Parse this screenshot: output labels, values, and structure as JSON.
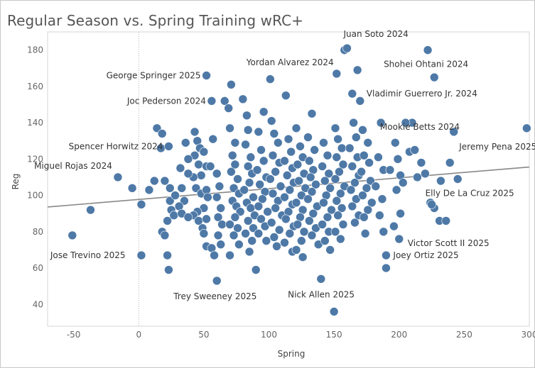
{
  "title": "Regular Season vs. Spring Training wRC+",
  "chart_data": {
    "type": "scatter",
    "title": "Regular Season vs. Spring Training wRC+",
    "xlabel": "Spring",
    "ylabel": "Reg",
    "xlim": [
      -70,
      300
    ],
    "ylim": [
      28,
      190
    ],
    "x_ticks": [
      -50,
      0,
      50,
      100,
      150,
      200,
      250,
      300
    ],
    "y_ticks": [
      40,
      60,
      80,
      100,
      120,
      140,
      160,
      180
    ],
    "grid": false,
    "zero_line": "x = 0 dotted",
    "colors": {
      "points": "#4e79a7",
      "trend": "#888888"
    },
    "trend_line": {
      "x": [
        -70,
        300
      ],
      "y": [
        93.6,
        115.6
      ]
    },
    "labeled_points": [
      {
        "name": "Juan Soto 2024",
        "x": 160,
        "y": 181
      },
      {
        "name": "Shohei Ohtani 2024",
        "x": 222,
        "y": 180
      },
      {
        "name": "Yordan Alvarez 2024",
        "x": 152,
        "y": 167
      },
      {
        "name": "George Springer 2025",
        "x": 52,
        "y": 166
      },
      {
        "name": "Vladimir Guerrero Jr. 2024",
        "x": 164,
        "y": 156
      },
      {
        "name": "Joc Pederson 2024",
        "x": 56,
        "y": 152
      },
      {
        "name": "Mookie Betts 2024",
        "x": 205,
        "y": 140
      },
      {
        "name": "Jeremy Pena 2025",
        "x": 298,
        "y": 137
      },
      {
        "name": "Spencer Horwitz 2024",
        "x": 23,
        "y": 127
      },
      {
        "name": "Miguel Rojas 2024",
        "x": -16,
        "y": 110
      },
      {
        "name": "Elly De La Cruz 2025",
        "x": 225,
        "y": 95
      },
      {
        "name": "Victor Scott II 2025",
        "x": 200,
        "y": 76
      },
      {
        "name": "Joey Ortiz 2025",
        "x": 190,
        "y": 67
      },
      {
        "name": "Jose Trevino 2025",
        "x": -51,
        "y": 78
      },
      {
        "name": "Trey Sweeney 2025",
        "x": 60,
        "y": 53
      },
      {
        "name": "Nick Allen 2025",
        "x": 150,
        "y": 36
      }
    ],
    "other_points": [
      [
        -37,
        92
      ],
      [
        -5,
        104
      ],
      [
        2,
        95
      ],
      [
        8,
        103
      ],
      [
        2,
        67
      ],
      [
        18,
        80
      ],
      [
        22,
        67
      ],
      [
        23,
        59
      ],
      [
        14,
        137
      ],
      [
        18,
        134
      ],
      [
        17,
        126
      ],
      [
        12,
        108
      ],
      [
        20,
        108
      ],
      [
        24,
        104
      ],
      [
        25,
        92
      ],
      [
        27,
        89
      ],
      [
        22,
        86
      ],
      [
        20,
        78
      ],
      [
        24,
        97
      ],
      [
        28,
        100
      ],
      [
        43,
        135
      ],
      [
        45,
        130
      ],
      [
        47,
        126
      ],
      [
        43,
        122
      ],
      [
        50,
        124
      ],
      [
        46,
        117
      ],
      [
        52,
        116
      ],
      [
        55,
        116
      ],
      [
        48,
        111
      ],
      [
        42,
        110
      ],
      [
        44,
        104
      ],
      [
        48,
        101
      ],
      [
        52,
        103
      ],
      [
        53,
        99
      ],
      [
        50,
        93
      ],
      [
        45,
        91
      ],
      [
        42,
        89
      ],
      [
        46,
        86
      ],
      [
        49,
        82
      ],
      [
        52,
        87
      ],
      [
        50,
        79
      ],
      [
        52,
        72
      ],
      [
        56,
        71
      ],
      [
        58,
        67
      ],
      [
        36,
        129
      ],
      [
        38,
        120
      ],
      [
        32,
        115
      ],
      [
        38,
        112
      ],
      [
        33,
        104
      ],
      [
        35,
        97
      ],
      [
        31,
        94
      ],
      [
        33,
        90
      ],
      [
        38,
        88
      ],
      [
        57,
        131
      ],
      [
        60,
        112
      ],
      [
        62,
        105
      ],
      [
        60,
        99
      ],
      [
        63,
        93
      ],
      [
        61,
        88
      ],
      [
        64,
        84
      ],
      [
        61,
        78
      ],
      [
        63,
        73
      ],
      [
        66,
        152
      ],
      [
        71,
        161
      ],
      [
        69,
        148
      ],
      [
        70,
        137
      ],
      [
        74,
        129
      ],
      [
        72,
        122
      ],
      [
        74,
        117
      ],
      [
        71,
        113
      ],
      [
        76,
        109
      ],
      [
        73,
        104
      ],
      [
        77,
        101
      ],
      [
        72,
        97
      ],
      [
        75,
        94
      ],
      [
        78,
        91
      ],
      [
        74,
        88
      ],
      [
        70,
        84
      ],
      [
        76,
        82
      ],
      [
        73,
        78
      ],
      [
        77,
        73
      ],
      [
        70,
        67
      ],
      [
        80,
        153
      ],
      [
        83,
        144
      ],
      [
        84,
        136
      ],
      [
        82,
        128
      ],
      [
        86,
        121
      ],
      [
        84,
        116
      ],
      [
        87,
        112
      ],
      [
        85,
        107
      ],
      [
        81,
        103
      ],
      [
        88,
        99
      ],
      [
        83,
        96
      ],
      [
        86,
        93
      ],
      [
        89,
        89
      ],
      [
        84,
        86
      ],
      [
        88,
        82
      ],
      [
        82,
        79
      ],
      [
        87,
        75
      ],
      [
        85,
        69
      ],
      [
        90,
        59
      ],
      [
        92,
        135
      ],
      [
        94,
        125
      ],
      [
        96,
        119
      ],
      [
        91,
        114
      ],
      [
        98,
        110
      ],
      [
        93,
        106
      ],
      [
        97,
        102
      ],
      [
        95,
        98
      ],
      [
        92,
        94
      ],
      [
        99,
        91
      ],
      [
        94,
        87
      ],
      [
        97,
        83
      ],
      [
        92,
        79
      ],
      [
        98,
        75
      ],
      [
        96,
        146
      ],
      [
        101,
        164
      ],
      [
        102,
        141
      ],
      [
        104,
        134
      ],
      [
        107,
        129
      ],
      [
        103,
        122
      ],
      [
        108,
        118
      ],
      [
        105,
        113
      ],
      [
        101,
        109
      ],
      [
        109,
        105
      ],
      [
        103,
        101
      ],
      [
        107,
        97
      ],
      [
        105,
        93
      ],
      [
        110,
        89
      ],
      [
        102,
        85
      ],
      [
        108,
        81
      ],
      [
        104,
        77
      ],
      [
        106,
        72
      ],
      [
        113,
        155
      ],
      [
        115,
        131
      ],
      [
        117,
        124
      ],
      [
        112,
        119
      ],
      [
        118,
        115
      ],
      [
        114,
        111
      ],
      [
        119,
        107
      ],
      [
        116,
        103
      ],
      [
        112,
        99
      ],
      [
        118,
        95
      ],
      [
        115,
        91
      ],
      [
        113,
        87
      ],
      [
        119,
        83
      ],
      [
        116,
        79
      ],
      [
        112,
        74
      ],
      [
        118,
        69
      ],
      [
        121,
        137
      ],
      [
        124,
        127
      ],
      [
        126,
        121
      ],
      [
        122,
        117
      ],
      [
        127,
        112
      ],
      [
        123,
        108
      ],
      [
        128,
        104
      ],
      [
        125,
        100
      ],
      [
        121,
        96
      ],
      [
        126,
        92
      ],
      [
        124,
        88
      ],
      [
        122,
        84
      ],
      [
        127,
        80
      ],
      [
        125,
        75
      ],
      [
        121,
        70
      ],
      [
        126,
        66
      ],
      [
        133,
        145
      ],
      [
        130,
        132
      ],
      [
        135,
        125
      ],
      [
        131,
        119
      ],
      [
        134,
        114
      ],
      [
        132,
        110
      ],
      [
        136,
        106
      ],
      [
        133,
        102
      ],
      [
        130,
        98
      ],
      [
        137,
        94
      ],
      [
        134,
        90
      ],
      [
        131,
        86
      ],
      [
        136,
        82
      ],
      [
        133,
        78
      ],
      [
        138,
        73
      ],
      [
        140,
        54
      ],
      [
        142,
        129
      ],
      [
        145,
        122
      ],
      [
        141,
        116
      ],
      [
        146,
        112
      ],
      [
        143,
        108
      ],
      [
        147,
        104
      ],
      [
        144,
        100
      ],
      [
        142,
        96
      ],
      [
        148,
        92
      ],
      [
        145,
        88
      ],
      [
        141,
        84
      ],
      [
        146,
        80
      ],
      [
        143,
        75
      ],
      [
        147,
        70
      ],
      [
        151,
        137
      ],
      [
        153,
        131
      ],
      [
        156,
        126
      ],
      [
        152,
        121
      ],
      [
        157,
        117
      ],
      [
        154,
        113
      ],
      [
        151,
        109
      ],
      [
        158,
        105
      ],
      [
        155,
        101
      ],
      [
        152,
        97
      ],
      [
        156,
        93
      ],
      [
        153,
        89
      ],
      [
        157,
        84
      ],
      [
        151,
        80
      ],
      [
        155,
        76
      ],
      [
        158,
        180
      ],
      [
        168,
        169
      ],
      [
        170,
        152
      ],
      [
        165,
        140
      ],
      [
        167,
        132
      ],
      [
        162,
        126
      ],
      [
        168,
        121
      ],
      [
        164,
        116
      ],
      [
        169,
        111
      ],
      [
        166,
        107
      ],
      [
        163,
        103
      ],
      [
        167,
        98
      ],
      [
        164,
        94
      ],
      [
        169,
        89
      ],
      [
        166,
        85
      ],
      [
        174,
        79
      ],
      [
        172,
        136
      ],
      [
        176,
        129
      ],
      [
        173,
        122
      ],
      [
        177,
        118
      ],
      [
        171,
        113
      ],
      [
        178,
        108
      ],
      [
        175,
        104
      ],
      [
        172,
        100
      ],
      [
        179,
        96
      ],
      [
        176,
        92
      ],
      [
        173,
        88
      ],
      [
        186,
        140
      ],
      [
        184,
        121
      ],
      [
        188,
        114
      ],
      [
        182,
        105
      ],
      [
        187,
        98
      ],
      [
        185,
        89
      ],
      [
        188,
        80
      ],
      [
        190,
        60
      ],
      [
        197,
        129
      ],
      [
        199,
        120
      ],
      [
        201,
        111
      ],
      [
        198,
        103
      ],
      [
        201,
        90
      ],
      [
        196,
        83
      ],
      [
        203,
        107
      ],
      [
        208,
        124
      ],
      [
        212,
        125
      ],
      [
        214,
        110
      ],
      [
        217,
        118
      ],
      [
        220,
        112
      ],
      [
        224,
        96
      ],
      [
        227,
        93
      ],
      [
        227,
        165
      ],
      [
        231,
        86
      ],
      [
        236,
        86
      ],
      [
        232,
        108
      ],
      [
        239,
        118
      ],
      [
        242,
        135
      ],
      [
        245,
        109
      ],
      [
        210,
        140
      ],
      [
        193,
        114
      ]
    ]
  }
}
